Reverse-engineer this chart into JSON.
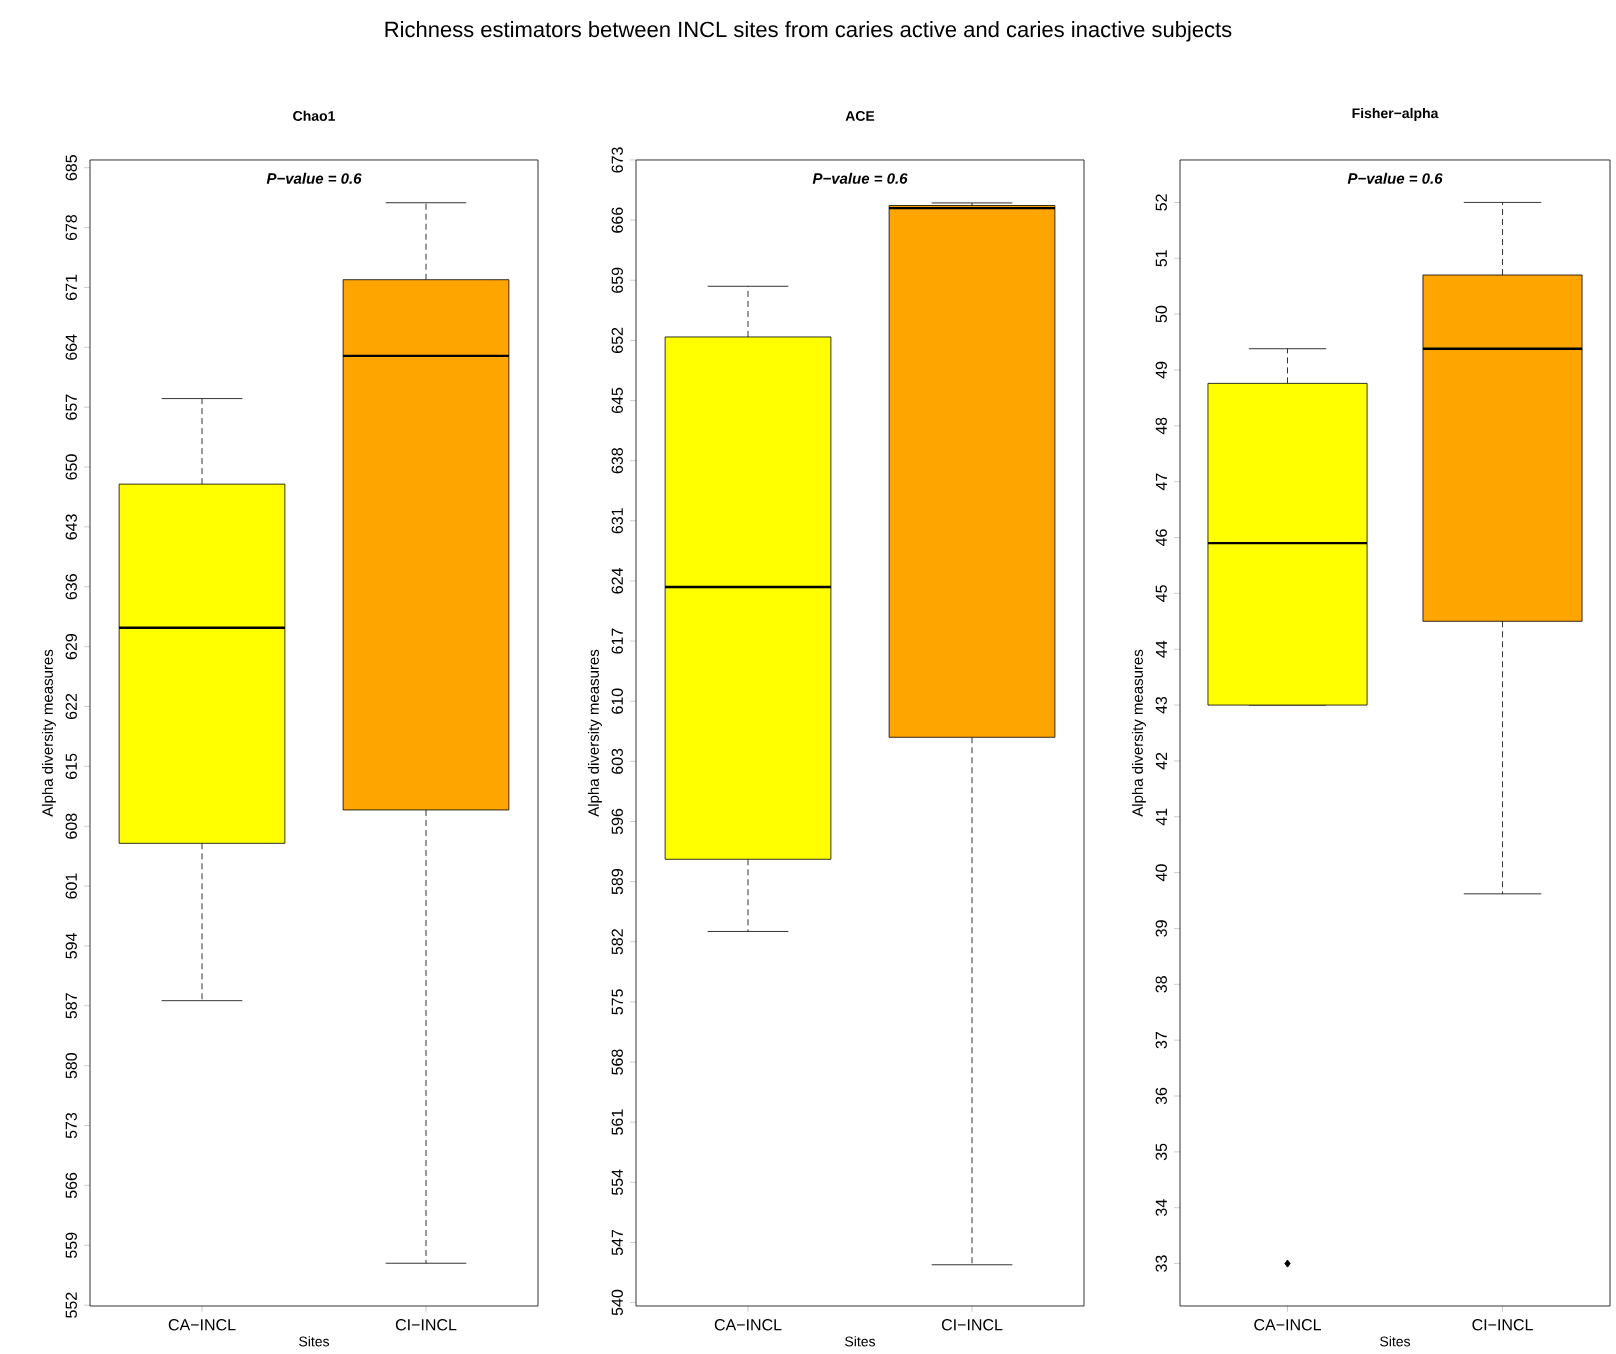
{
  "chart_data": [
    {
      "type": "box",
      "title": "Chao1",
      "xlabel": "Sites",
      "ylabel": "Alpha diversity measures",
      "annotations": [
        "Richness estimators between INCL sites from caries active and caries inactive subjects",
        "P−value = 0.6"
      ],
      "categories": [
        "CA−INCL",
        "CI−INCL"
      ],
      "colors": [
        "#ffff00",
        "#ffa500"
      ],
      "boxes": [
        {
          "low": 587.6,
          "q1": 606.0,
          "median": 631.2,
          "q3": 648.0,
          "high": 658.0
        },
        {
          "low": 556.9,
          "q1": 609.9,
          "median": 663.0,
          "q3": 671.9,
          "high": 680.9
        }
      ],
      "ylim": [
        551.9,
        685.9
      ],
      "yticks": [
        552,
        559,
        566,
        573,
        580,
        587,
        594,
        601,
        608,
        615,
        622,
        629,
        636,
        643,
        650,
        657,
        664,
        671,
        678,
        685
      ]
    },
    {
      "type": "box",
      "title": "ACE",
      "xlabel": "Sites",
      "ylabel": "Alpha diversity measures",
      "annotations": [
        "P−value = 0.6"
      ],
      "categories": [
        "CA−INCL",
        "CI−INCL"
      ],
      "colors": [
        "#ffff00",
        "#ffa500"
      ],
      "boxes": [
        {
          "low": 583.2,
          "q1": 591.6,
          "median": 623.3,
          "q3": 652.4,
          "high": 658.3
        },
        {
          "low": 544.4,
          "q1": 605.8,
          "median": 667.4,
          "q3": 667.7,
          "high": 668.0
        }
      ],
      "ylim": [
        539.6,
        673.0
      ],
      "yticks": [
        540,
        547,
        554,
        561,
        568,
        575,
        582,
        589,
        596,
        603,
        610,
        617,
        624,
        631,
        638,
        645,
        652,
        659,
        666,
        673
      ]
    },
    {
      "type": "box",
      "title": "Fisher−alpha",
      "xlabel": "Sites",
      "ylabel": "Alpha diversity measures",
      "annotations": [
        "P−value = 0.6"
      ],
      "categories": [
        "CA−INCL",
        "CI−INCL"
      ],
      "colors": [
        "#ffff00",
        "#ffa500"
      ],
      "boxes": [
        {
          "low": 43.0,
          "q1": 43.0,
          "median": 45.9,
          "q3": 48.76,
          "high": 49.38,
          "outliers": [
            33.0
          ]
        },
        {
          "low": 39.62,
          "q1": 44.5,
          "median": 49.38,
          "q3": 50.7,
          "high": 52.0
        }
      ],
      "ylim": [
        32.24,
        52.76
      ],
      "yticks": [
        33,
        34,
        35,
        36,
        37,
        38,
        39,
        40,
        41,
        42,
        43,
        44,
        45,
        46,
        47,
        48,
        49,
        50,
        51,
        52
      ]
    }
  ]
}
